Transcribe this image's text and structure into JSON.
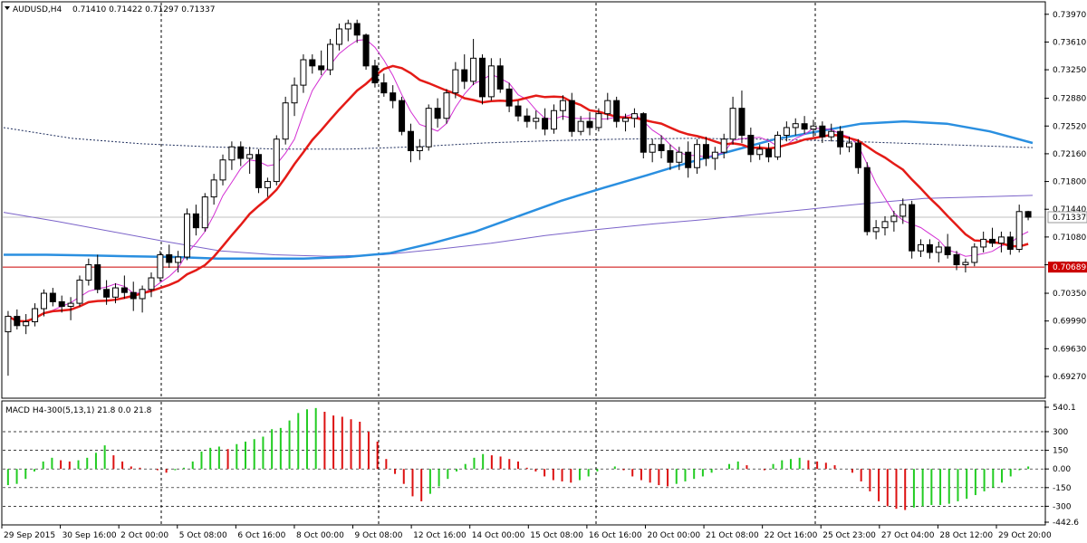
{
  "header": {
    "symbol": "AUDUSD,H4",
    "ohlc": "0.71410 0.71422 0.71297 0.71337"
  },
  "macd_header": "MACD H4-300(5,13,1) 21.8 0.0 21.8",
  "price_axis": {
    "min": 0.69,
    "max": 0.7412,
    "ticks": [
      "0.73970",
      "0.73610",
      "0.73250",
      "0.72880",
      "0.72520",
      "0.72160",
      "0.71800",
      "0.71440",
      "0.71080",
      "0.70720",
      "0.70350",
      "0.69990",
      "0.69630",
      "0.69270"
    ]
  },
  "macd_axis": {
    "min": -442.6,
    "max": 540.1,
    "ticks": [
      {
        "label": "540.1",
        "value": 540.1
      },
      {
        "label": "300",
        "value": 300
      },
      {
        "label": "150",
        "value": 150
      },
      {
        "label": "0.00",
        "value": 0
      },
      {
        "label": "-150",
        "value": -150
      },
      {
        "label": "-300",
        "value": -300
      },
      {
        "label": "-442.6",
        "value": -442.6
      }
    ]
  },
  "current_price": {
    "label": "0.71337",
    "value": 0.71337
  },
  "level_line": {
    "label": "0.70689",
    "value": 0.70689
  },
  "x_labels": [
    "29 Sep 2015",
    "30 Sep 16:00",
    "2 Oct 00:00",
    "5 Oct 08:00",
    "6 Oct 16:00",
    "8 Oct 00:00",
    "9 Oct 08:00",
    "12 Oct 16:00",
    "14 Oct 00:00",
    "15 Oct 08:00",
    "16 Oct 16:00",
    "20 Oct 00:00",
    "21 Oct 08:00",
    "22 Oct 16:00",
    "25 Oct 23:00",
    "27 Oct 04:00",
    "28 Oct 12:00",
    "29 Oct 20:00"
  ],
  "colors": {
    "bull_candle": "#ffffff",
    "bear_candle": "#000000",
    "ma_red": "#e41b17",
    "ma_magenta": "#d32fd3",
    "ma_blue": "#2a8fe0",
    "ma_purple": "#7b63c9",
    "ma_dotted": "#1a2a5a",
    "macd_up": "#22cc22",
    "macd_down": "#dd1111",
    "level": "#cc0000"
  },
  "chart_data": {
    "type": "candlestick",
    "timeframe": "H4",
    "candles": [
      {
        "o": 0.6985,
        "h": 0.7012,
        "l": 0.6928,
        "c": 0.7005
      },
      {
        "o": 0.7005,
        "h": 0.7014,
        "l": 0.6988,
        "c": 0.6993
      },
      {
        "o": 0.6993,
        "h": 0.7008,
        "l": 0.6982,
        "c": 0.6998
      },
      {
        "o": 0.6998,
        "h": 0.7022,
        "l": 0.6992,
        "c": 0.7015
      },
      {
        "o": 0.7015,
        "h": 0.704,
        "l": 0.7005,
        "c": 0.7035
      },
      {
        "o": 0.7035,
        "h": 0.7042,
        "l": 0.7018,
        "c": 0.7024
      },
      {
        "o": 0.7024,
        "h": 0.7032,
        "l": 0.701,
        "c": 0.7018
      },
      {
        "o": 0.7018,
        "h": 0.703,
        "l": 0.7,
        "c": 0.7022
      },
      {
        "o": 0.7022,
        "h": 0.7058,
        "l": 0.7018,
        "c": 0.7052
      },
      {
        "o": 0.7052,
        "h": 0.708,
        "l": 0.7045,
        "c": 0.7072
      },
      {
        "o": 0.7072,
        "h": 0.7085,
        "l": 0.7035,
        "c": 0.704
      },
      {
        "o": 0.704,
        "h": 0.7052,
        "l": 0.702,
        "c": 0.703
      },
      {
        "o": 0.703,
        "h": 0.7048,
        "l": 0.7022,
        "c": 0.7042
      },
      {
        "o": 0.7042,
        "h": 0.7058,
        "l": 0.7028,
        "c": 0.7036
      },
      {
        "o": 0.7036,
        "h": 0.705,
        "l": 0.7012,
        "c": 0.7028
      },
      {
        "o": 0.7028,
        "h": 0.7045,
        "l": 0.701,
        "c": 0.704
      },
      {
        "o": 0.704,
        "h": 0.7062,
        "l": 0.703,
        "c": 0.7055
      },
      {
        "o": 0.7055,
        "h": 0.709,
        "l": 0.705,
        "c": 0.7085
      },
      {
        "o": 0.7085,
        "h": 0.7098,
        "l": 0.7068,
        "c": 0.7075
      },
      {
        "o": 0.7075,
        "h": 0.709,
        "l": 0.7062,
        "c": 0.7082
      },
      {
        "o": 0.7082,
        "h": 0.7145,
        "l": 0.7078,
        "c": 0.7138
      },
      {
        "o": 0.7138,
        "h": 0.715,
        "l": 0.711,
        "c": 0.712
      },
      {
        "o": 0.712,
        "h": 0.7165,
        "l": 0.7115,
        "c": 0.716
      },
      {
        "o": 0.716,
        "h": 0.719,
        "l": 0.715,
        "c": 0.7182
      },
      {
        "o": 0.7182,
        "h": 0.7215,
        "l": 0.7175,
        "c": 0.7208
      },
      {
        "o": 0.7208,
        "h": 0.7232,
        "l": 0.7195,
        "c": 0.7225
      },
      {
        "o": 0.7225,
        "h": 0.7232,
        "l": 0.72,
        "c": 0.721
      },
      {
        "o": 0.721,
        "h": 0.7225,
        "l": 0.719,
        "c": 0.7215
      },
      {
        "o": 0.7215,
        "h": 0.7222,
        "l": 0.7165,
        "c": 0.7172
      },
      {
        "o": 0.7172,
        "h": 0.7185,
        "l": 0.716,
        "c": 0.718
      },
      {
        "o": 0.718,
        "h": 0.724,
        "l": 0.7175,
        "c": 0.7235
      },
      {
        "o": 0.7235,
        "h": 0.729,
        "l": 0.7228,
        "c": 0.7282
      },
      {
        "o": 0.7282,
        "h": 0.7315,
        "l": 0.7265,
        "c": 0.7305
      },
      {
        "o": 0.7305,
        "h": 0.7345,
        "l": 0.7295,
        "c": 0.7338
      },
      {
        "o": 0.7338,
        "h": 0.7345,
        "l": 0.732,
        "c": 0.733
      },
      {
        "o": 0.733,
        "h": 0.735,
        "l": 0.7318,
        "c": 0.7325
      },
      {
        "o": 0.7325,
        "h": 0.7365,
        "l": 0.7318,
        "c": 0.7358
      },
      {
        "o": 0.7358,
        "h": 0.7385,
        "l": 0.735,
        "c": 0.7378
      },
      {
        "o": 0.7378,
        "h": 0.739,
        "l": 0.7362,
        "c": 0.7385
      },
      {
        "o": 0.7385,
        "h": 0.739,
        "l": 0.736,
        "c": 0.737
      },
      {
        "o": 0.737,
        "h": 0.7372,
        "l": 0.7325,
        "c": 0.733
      },
      {
        "o": 0.733,
        "h": 0.7338,
        "l": 0.7302,
        "c": 0.7308
      },
      {
        "o": 0.7308,
        "h": 0.732,
        "l": 0.729,
        "c": 0.7295
      },
      {
        "o": 0.7295,
        "h": 0.7305,
        "l": 0.7275,
        "c": 0.7285
      },
      {
        "o": 0.7285,
        "h": 0.729,
        "l": 0.724,
        "c": 0.7245
      },
      {
        "o": 0.7245,
        "h": 0.7255,
        "l": 0.7205,
        "c": 0.722
      },
      {
        "o": 0.722,
        "h": 0.7235,
        "l": 0.7208,
        "c": 0.7225
      },
      {
        "o": 0.7225,
        "h": 0.728,
        "l": 0.722,
        "c": 0.7275
      },
      {
        "o": 0.7275,
        "h": 0.7288,
        "l": 0.725,
        "c": 0.7262
      },
      {
        "o": 0.7262,
        "h": 0.73,
        "l": 0.7255,
        "c": 0.7295
      },
      {
        "o": 0.7295,
        "h": 0.7335,
        "l": 0.7288,
        "c": 0.7325
      },
      {
        "o": 0.7325,
        "h": 0.7345,
        "l": 0.73,
        "c": 0.731
      },
      {
        "o": 0.731,
        "h": 0.7365,
        "l": 0.7305,
        "c": 0.734
      },
      {
        "o": 0.734,
        "h": 0.7345,
        "l": 0.728,
        "c": 0.729
      },
      {
        "o": 0.729,
        "h": 0.734,
        "l": 0.7285,
        "c": 0.733
      },
      {
        "o": 0.733,
        "h": 0.734,
        "l": 0.7295,
        "c": 0.73
      },
      {
        "o": 0.73,
        "h": 0.7308,
        "l": 0.727,
        "c": 0.7278
      },
      {
        "o": 0.7278,
        "h": 0.7285,
        "l": 0.7258,
        "c": 0.7265
      },
      {
        "o": 0.7265,
        "h": 0.7275,
        "l": 0.725,
        "c": 0.7258
      },
      {
        "o": 0.7258,
        "h": 0.7272,
        "l": 0.7248,
        "c": 0.7262
      },
      {
        "o": 0.7262,
        "h": 0.7275,
        "l": 0.724,
        "c": 0.7248
      },
      {
        "o": 0.7248,
        "h": 0.728,
        "l": 0.7242,
        "c": 0.7272
      },
      {
        "o": 0.7272,
        "h": 0.7292,
        "l": 0.726,
        "c": 0.7285
      },
      {
        "o": 0.7285,
        "h": 0.7295,
        "l": 0.7238,
        "c": 0.7245
      },
      {
        "o": 0.7245,
        "h": 0.7265,
        "l": 0.724,
        "c": 0.7258
      },
      {
        "o": 0.7258,
        "h": 0.727,
        "l": 0.724,
        "c": 0.725
      },
      {
        "o": 0.725,
        "h": 0.7275,
        "l": 0.7245,
        "c": 0.7268
      },
      {
        "o": 0.7268,
        "h": 0.7295,
        "l": 0.726,
        "c": 0.7285
      },
      {
        "o": 0.7285,
        "h": 0.729,
        "l": 0.725,
        "c": 0.7258
      },
      {
        "o": 0.7258,
        "h": 0.7268,
        "l": 0.7245,
        "c": 0.7262
      },
      {
        "o": 0.7262,
        "h": 0.7275,
        "l": 0.725,
        "c": 0.7268
      },
      {
        "o": 0.7268,
        "h": 0.727,
        "l": 0.721,
        "c": 0.7218
      },
      {
        "o": 0.7218,
        "h": 0.7235,
        "l": 0.7205,
        "c": 0.7228
      },
      {
        "o": 0.7228,
        "h": 0.724,
        "l": 0.721,
        "c": 0.722
      },
      {
        "o": 0.722,
        "h": 0.7228,
        "l": 0.7195,
        "c": 0.7205
      },
      {
        "o": 0.7205,
        "h": 0.7225,
        "l": 0.7195,
        "c": 0.7218
      },
      {
        "o": 0.7218,
        "h": 0.7232,
        "l": 0.7185,
        "c": 0.7198
      },
      {
        "o": 0.7198,
        "h": 0.7235,
        "l": 0.719,
        "c": 0.7228
      },
      {
        "o": 0.7228,
        "h": 0.7238,
        "l": 0.72,
        "c": 0.721
      },
      {
        "o": 0.721,
        "h": 0.7225,
        "l": 0.7195,
        "c": 0.7218
      },
      {
        "o": 0.7218,
        "h": 0.7242,
        "l": 0.721,
        "c": 0.7235
      },
      {
        "o": 0.7235,
        "h": 0.729,
        "l": 0.7228,
        "c": 0.7275
      },
      {
        "o": 0.7275,
        "h": 0.7298,
        "l": 0.723,
        "c": 0.724
      },
      {
        "o": 0.724,
        "h": 0.725,
        "l": 0.7205,
        "c": 0.7215
      },
      {
        "o": 0.7215,
        "h": 0.7228,
        "l": 0.7208,
        "c": 0.7222
      },
      {
        "o": 0.7222,
        "h": 0.723,
        "l": 0.7205,
        "c": 0.7212
      },
      {
        "o": 0.7212,
        "h": 0.7245,
        "l": 0.7208,
        "c": 0.724
      },
      {
        "o": 0.724,
        "h": 0.7258,
        "l": 0.7232,
        "c": 0.725
      },
      {
        "o": 0.725,
        "h": 0.7262,
        "l": 0.724,
        "c": 0.7255
      },
      {
        "o": 0.7255,
        "h": 0.7265,
        "l": 0.7242,
        "c": 0.7248
      },
      {
        "o": 0.7248,
        "h": 0.726,
        "l": 0.7238,
        "c": 0.7252
      },
      {
        "o": 0.7252,
        "h": 0.7258,
        "l": 0.723,
        "c": 0.7238
      },
      {
        "o": 0.7238,
        "h": 0.7255,
        "l": 0.7232,
        "c": 0.7245
      },
      {
        "o": 0.7245,
        "h": 0.7252,
        "l": 0.7215,
        "c": 0.7225
      },
      {
        "o": 0.7225,
        "h": 0.7238,
        "l": 0.7218,
        "c": 0.723
      },
      {
        "o": 0.723,
        "h": 0.7235,
        "l": 0.719,
        "c": 0.7198
      },
      {
        "o": 0.7198,
        "h": 0.7205,
        "l": 0.711,
        "c": 0.7115
      },
      {
        "o": 0.7115,
        "h": 0.713,
        "l": 0.7105,
        "c": 0.712
      },
      {
        "o": 0.712,
        "h": 0.7135,
        "l": 0.711,
        "c": 0.7128
      },
      {
        "o": 0.7128,
        "h": 0.7142,
        "l": 0.7115,
        "c": 0.7135
      },
      {
        "o": 0.7135,
        "h": 0.7158,
        "l": 0.7125,
        "c": 0.715
      },
      {
        "o": 0.715,
        "h": 0.7155,
        "l": 0.708,
        "c": 0.709
      },
      {
        "o": 0.709,
        "h": 0.7105,
        "l": 0.7082,
        "c": 0.7098
      },
      {
        "o": 0.7098,
        "h": 0.7105,
        "l": 0.708,
        "c": 0.7088
      },
      {
        "o": 0.7088,
        "h": 0.7102,
        "l": 0.7075,
        "c": 0.7095
      },
      {
        "o": 0.7095,
        "h": 0.7112,
        "l": 0.708,
        "c": 0.7085
      },
      {
        "o": 0.7085,
        "h": 0.709,
        "l": 0.7065,
        "c": 0.7072
      },
      {
        "o": 0.7072,
        "h": 0.708,
        "l": 0.7062,
        "c": 0.7075
      },
      {
        "o": 0.7075,
        "h": 0.71,
        "l": 0.707,
        "c": 0.7095
      },
      {
        "o": 0.7095,
        "h": 0.7115,
        "l": 0.7088,
        "c": 0.7105
      },
      {
        "o": 0.7105,
        "h": 0.712,
        "l": 0.7095,
        "c": 0.71
      },
      {
        "o": 0.71,
        "h": 0.7115,
        "l": 0.7088,
        "c": 0.7108
      },
      {
        "o": 0.7108,
        "h": 0.7115,
        "l": 0.7085,
        "c": 0.7092
      },
      {
        "o": 0.7092,
        "h": 0.715,
        "l": 0.7088,
        "c": 0.7141
      },
      {
        "o": 0.7141,
        "h": 0.7142,
        "l": 0.71297,
        "c": 0.71337
      }
    ],
    "ma_dotted_upper": [
      0.725,
      0.7236,
      0.7229,
      0.7225,
      0.7222,
      0.7222,
      0.7225,
      0.723,
      0.7233,
      0.7235,
      0.7236,
      0.7235,
      0.7233,
      0.723,
      0.7227,
      0.7224
    ],
    "ma_purple": [
      0.714,
      0.7128,
      0.7115,
      0.7102,
      0.709,
      0.7085,
      0.7083,
      0.7085,
      0.7092,
      0.71,
      0.711,
      0.7118,
      0.7125,
      0.7131,
      0.7138,
      0.7145,
      0.7152,
      0.7158,
      0.716,
      0.7162
    ],
    "ma_blue": [
      0.7085,
      0.7085,
      0.7084,
      0.7083,
      0.7082,
      0.708,
      0.708,
      0.708,
      0.7082,
      0.7087,
      0.71,
      0.7115,
      0.7135,
      0.7155,
      0.7172,
      0.7188,
      0.7205,
      0.722,
      0.7235,
      0.7245,
      0.7255,
      0.7258,
      0.7255,
      0.7245,
      0.723
    ],
    "macd": [
      -130,
      -120,
      -80,
      -20,
      60,
      90,
      70,
      60,
      70,
      90,
      130,
      190,
      110,
      60,
      20,
      10,
      0,
      -10,
      -30,
      -10,
      10,
      60,
      140,
      170,
      180,
      160,
      200,
      220,
      240,
      260,
      320,
      330,
      390,
      450,
      480,
      490,
      460,
      430,
      420,
      400,
      380,
      300,
      220,
      80,
      -40,
      -120,
      -220,
      -260,
      -200,
      -140,
      -80,
      -20,
      40,
      90,
      120,
      110,
      100,
      80,
      60,
      10,
      -20,
      -60,
      -90,
      -100,
      -110,
      -90,
      -60,
      -20,
      0,
      20,
      -10,
      -60,
      -90,
      -110,
      -130,
      -140,
      -120,
      -100,
      -80,
      -60,
      -30,
      0,
      40,
      60,
      30,
      0,
      -10,
      40,
      70,
      80,
      90,
      70,
      60,
      50,
      30,
      0,
      -30,
      -100,
      -180,
      -260,
      -300,
      -320,
      -330,
      -310,
      -300,
      -290,
      -290,
      -280,
      -260,
      -240,
      -210,
      -180,
      -150,
      -110,
      -60,
      -10,
      20
    ]
  }
}
